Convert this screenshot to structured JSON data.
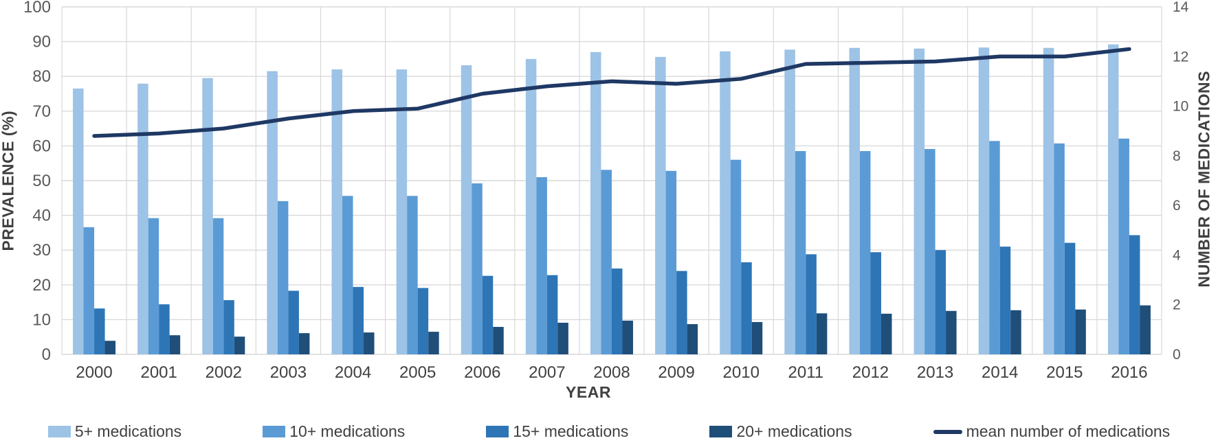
{
  "chart_data": {
    "type": "bar",
    "subtype": "grouped-bars-with-line-overlay",
    "title": "",
    "categories": [
      "2000",
      "2001",
      "2002",
      "2003",
      "2004",
      "2005",
      "2006",
      "2007",
      "2008",
      "2009",
      "2010",
      "2011",
      "2012",
      "2013",
      "2014",
      "2015",
      "2016"
    ],
    "series": [
      {
        "name": "5+ medications",
        "type": "bar",
        "axis": "left",
        "color": "#9DC3E6",
        "values": [
          76.5,
          77.9,
          79.5,
          81.5,
          82.0,
          82.0,
          83.2,
          85.0,
          87.0,
          85.6,
          87.2,
          87.7,
          88.2,
          88.0,
          88.3,
          88.2,
          89.2
        ]
      },
      {
        "name": "10+ medications",
        "type": "bar",
        "axis": "left",
        "color": "#5B9BD5",
        "values": [
          36.6,
          39.2,
          39.2,
          44.1,
          45.6,
          45.6,
          49.2,
          51.0,
          53.1,
          52.8,
          56.0,
          58.5,
          58.5,
          59.1,
          61.4,
          60.7,
          62.1
        ]
      },
      {
        "name": "15+ medications",
        "type": "bar",
        "axis": "left",
        "color": "#2E75B6",
        "values": [
          13.2,
          14.4,
          15.6,
          18.3,
          19.4,
          19.1,
          22.6,
          22.8,
          24.7,
          24.0,
          26.5,
          28.8,
          29.4,
          30.0,
          31.0,
          32.1,
          34.3
        ]
      },
      {
        "name": "20+ medications",
        "type": "bar",
        "axis": "left",
        "color": "#1F4E79",
        "values": [
          3.9,
          5.5,
          5.1,
          6.1,
          6.3,
          6.5,
          7.9,
          9.1,
          9.7,
          8.7,
          9.3,
          11.8,
          11.7,
          12.5,
          12.7,
          12.9,
          14.1
        ]
      },
      {
        "name": "mean number of medications",
        "type": "line",
        "axis": "right",
        "color": "#1F3864",
        "values": [
          8.8,
          8.9,
          9.1,
          9.5,
          9.8,
          9.9,
          10.5,
          10.8,
          11.0,
          10.9,
          11.1,
          11.7,
          11.75,
          11.8,
          12.0,
          12.0,
          12.3
        ]
      }
    ],
    "left_axis": {
      "label": "PREVALENCE (%)",
      "min": 0,
      "max": 100,
      "step": 10
    },
    "right_axis": {
      "label": "NUMBER OF MEDICATIONS",
      "min": 0,
      "max": 14,
      "step": 2
    },
    "x_axis": {
      "label": "YEAR"
    },
    "grid": {
      "horizontal": true,
      "vertical": true,
      "color": "#D9D9D9"
    },
    "legend_position": "bottom",
    "tick_color": "#595959",
    "category_tick_color": "#404040"
  }
}
